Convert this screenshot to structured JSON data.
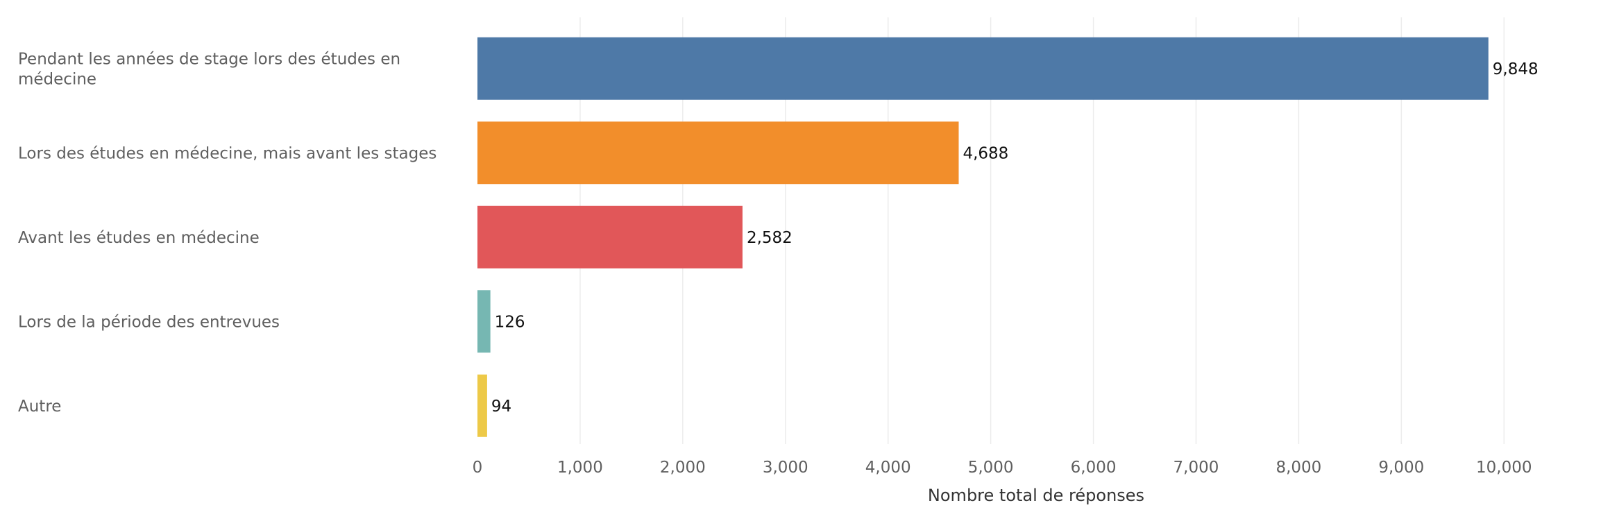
{
  "chart_data": {
    "type": "bar",
    "orientation": "horizontal",
    "title": "",
    "xlabel": "Nombre total de réponses",
    "ylabel": "",
    "xlim": [
      0,
      10850
    ],
    "x_ticks": [
      0,
      1000,
      2000,
      3000,
      4000,
      5000,
      6000,
      7000,
      8000,
      9000,
      10000
    ],
    "x_tick_labels": [
      "0",
      "1,000",
      "2,000",
      "3,000",
      "4,000",
      "5,000",
      "6,000",
      "7,000",
      "8,000",
      "9,000",
      "10,000"
    ],
    "grid": true,
    "categories": [
      "Pendant les années de stage lors des études en médecine",
      "Lors des études en médecine, mais avant les stages",
      "Avant les études en médecine",
      "Lors de la période des entrevues",
      "Autre"
    ],
    "category_label_lines": [
      [
        "Pendant les années de stage lors des études en",
        "médecine"
      ],
      [
        "Lors des études en médecine, mais avant les stages"
      ],
      [
        "Avant les études en médecine"
      ],
      [
        "Lors de la période des entrevues"
      ],
      [
        "Autre"
      ]
    ],
    "values": [
      9848,
      4688,
      2582,
      126,
      94
    ],
    "value_labels": [
      "9,848",
      "4,688",
      "2,582",
      "126",
      "94"
    ],
    "colors": [
      "#4e79a7",
      "#f28e2b",
      "#e15759",
      "#76b7b2",
      "#edc948"
    ]
  }
}
